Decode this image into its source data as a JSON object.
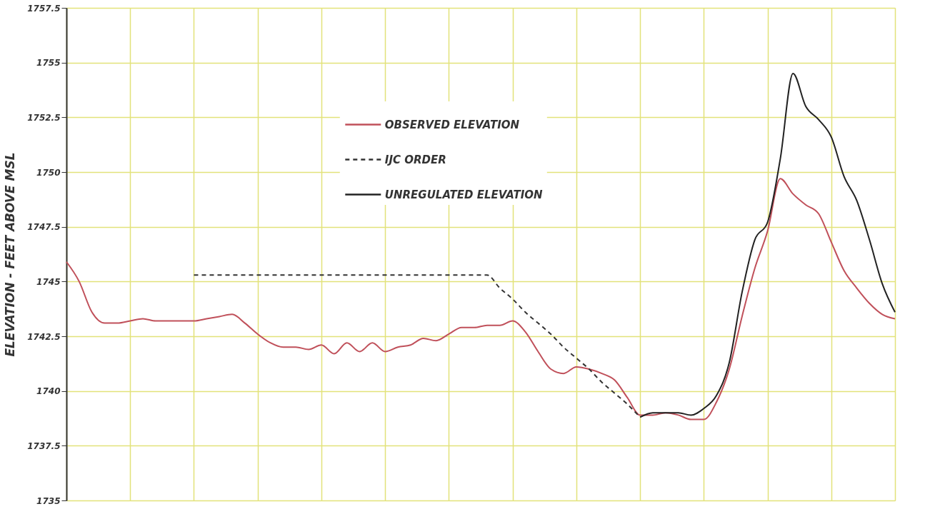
{
  "chart_data": {
    "type": "line",
    "ylabel": "ELEVATION - FEET ABOVE MSL",
    "categories": [
      null,
      null,
      null,
      null,
      null,
      null,
      null,
      null,
      null,
      null,
      null,
      null,
      null,
      null,
      null,
      null,
      null,
      null,
      null,
      null,
      null,
      null,
      null,
      null,
      null,
      null,
      null,
      null,
      null,
      null,
      null,
      null,
      null,
      null,
      null,
      null,
      null,
      null,
      null,
      null,
      null,
      null,
      null,
      null,
      null,
      null,
      null,
      null,
      null,
      null,
      null,
      null,
      null,
      null,
      null,
      null,
      null,
      null,
      null,
      null,
      null,
      null,
      null,
      null,
      null,
      null
    ],
    "ylim": [
      1735,
      1757.5
    ],
    "yticks": [
      1735,
      1737.5,
      1740,
      1742.5,
      1745,
      1747.5,
      1750,
      1752.5,
      1755,
      1757.5
    ],
    "tick_labels": "y",
    "grid": true,
    "legend": "top",
    "series": [
      {
        "name": "OBSERVED ELEVATION",
        "color": "#c0505a",
        "line_style": "solid",
        "values": [
          1745.9,
          1745.0,
          1743.6,
          1743.1,
          1743.1,
          1743.2,
          1743.3,
          1743.2,
          1743.2,
          1743.2,
          1743.2,
          1743.3,
          1743.4,
          1743.5,
          1743.1,
          1742.6,
          1742.2,
          1742.0,
          1742.0,
          1741.9,
          1742.1,
          1741.7,
          1742.2,
          1741.8,
          1742.2,
          1741.8,
          1742.0,
          1742.1,
          1742.4,
          1742.3,
          1742.6,
          1742.9,
          1742.9,
          1743.0,
          1743.0,
          1743.2,
          1742.7,
          1741.8,
          1741.0,
          1740.8,
          1741.1,
          1741.0,
          1740.8,
          1740.5,
          1739.7,
          1738.9,
          1738.9,
          1739.0,
          1738.9,
          1738.7,
          1738.7,
          1739.5,
          1741.0,
          1743.4,
          1745.6,
          1747.3,
          1749.7,
          1749.0,
          1748.5,
          1748.1,
          1746.8,
          1745.5,
          1744.7,
          1744.0,
          1743.5,
          1743.3
        ]
      },
      {
        "name": "IJC ORDER",
        "color": "#333333",
        "line_style": "dashed",
        "values": [
          null,
          null,
          null,
          null,
          null,
          null,
          null,
          null,
          null,
          null,
          1745.3,
          1745.3,
          1745.3,
          1745.3,
          1745.3,
          1745.3,
          1745.3,
          1745.3,
          1745.3,
          1745.3,
          1745.3,
          1745.3,
          1745.3,
          1745.3,
          1745.3,
          1745.3,
          1745.3,
          1745.3,
          1745.3,
          1745.3,
          1745.3,
          1745.3,
          1745.3,
          1745.3,
          1744.7,
          1744.2,
          1743.6,
          1743.1,
          1742.6,
          1742.0,
          1741.5,
          1741.0,
          1740.4,
          1739.9,
          1739.4,
          1738.8,
          null,
          null,
          null,
          null,
          null,
          null,
          null,
          null,
          null,
          null,
          null,
          null,
          null,
          null,
          null,
          null,
          null,
          null,
          null,
          null
        ]
      },
      {
        "name": "UNREGULATED ELEVATION",
        "color": "#222222",
        "line_style": "solid",
        "values": [
          null,
          null,
          null,
          null,
          null,
          null,
          null,
          null,
          null,
          null,
          null,
          null,
          null,
          null,
          null,
          null,
          null,
          null,
          null,
          null,
          null,
          null,
          null,
          null,
          null,
          null,
          null,
          null,
          null,
          null,
          null,
          null,
          null,
          null,
          null,
          null,
          null,
          null,
          null,
          null,
          null,
          null,
          null,
          null,
          null,
          1738.8,
          1739.0,
          1739.0,
          1739.0,
          1738.9,
          1739.2,
          1739.8,
          1741.3,
          1744.5,
          1746.9,
          1747.7,
          1750.6,
          1754.5,
          1753.0,
          1752.4,
          1751.6,
          1749.8,
          1748.7,
          1746.9,
          1744.9,
          1743.6
        ]
      }
    ]
  }
}
